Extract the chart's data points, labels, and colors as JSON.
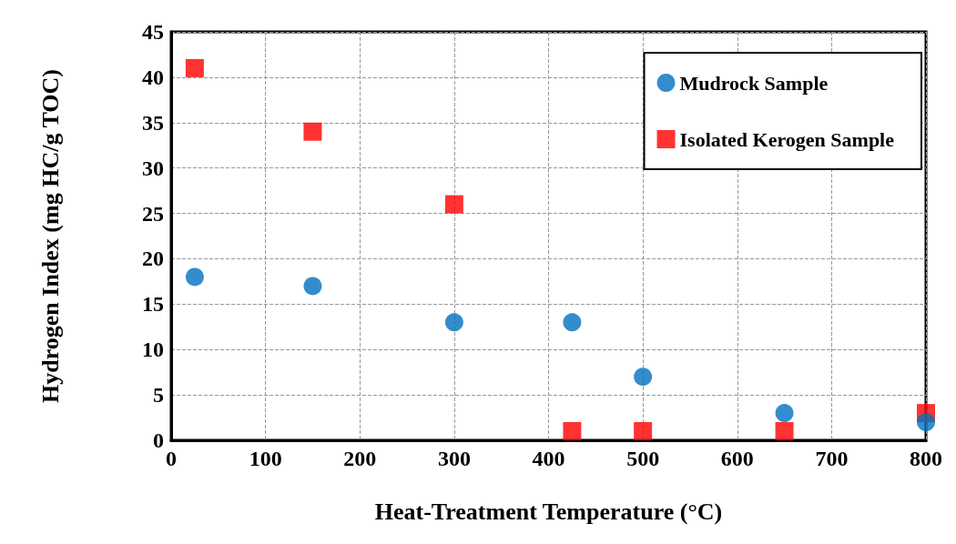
{
  "chart_data": {
    "type": "scatter",
    "xlabel": "Heat-Treatment Temperature (°C)",
    "ylabel": "Hydrogen Index (mg HC/g TOC)",
    "xlim": [
      0,
      800
    ],
    "xticks": [
      0,
      100,
      200,
      300,
      400,
      500,
      600,
      700,
      800
    ],
    "ylim": [
      0,
      45
    ],
    "yticks": [
      0,
      5,
      10,
      15,
      20,
      25,
      30,
      35,
      40,
      45
    ],
    "grid": true,
    "legend": "top right",
    "series": [
      {
        "name": "Mudrock Sample",
        "color": "#0070c0",
        "marker": "circle",
        "x": [
          25,
          150,
          300,
          425,
          500,
          650,
          800
        ],
        "values": [
          18,
          17,
          13,
          13,
          7,
          3,
          2
        ]
      },
      {
        "name": "Isolated Kerogen Sample",
        "color": "#ff0000",
        "marker": "square",
        "x": [
          25,
          150,
          300,
          425,
          500,
          650,
          800
        ],
        "values": [
          41,
          34,
          26,
          1,
          1,
          1,
          3
        ]
      }
    ]
  }
}
